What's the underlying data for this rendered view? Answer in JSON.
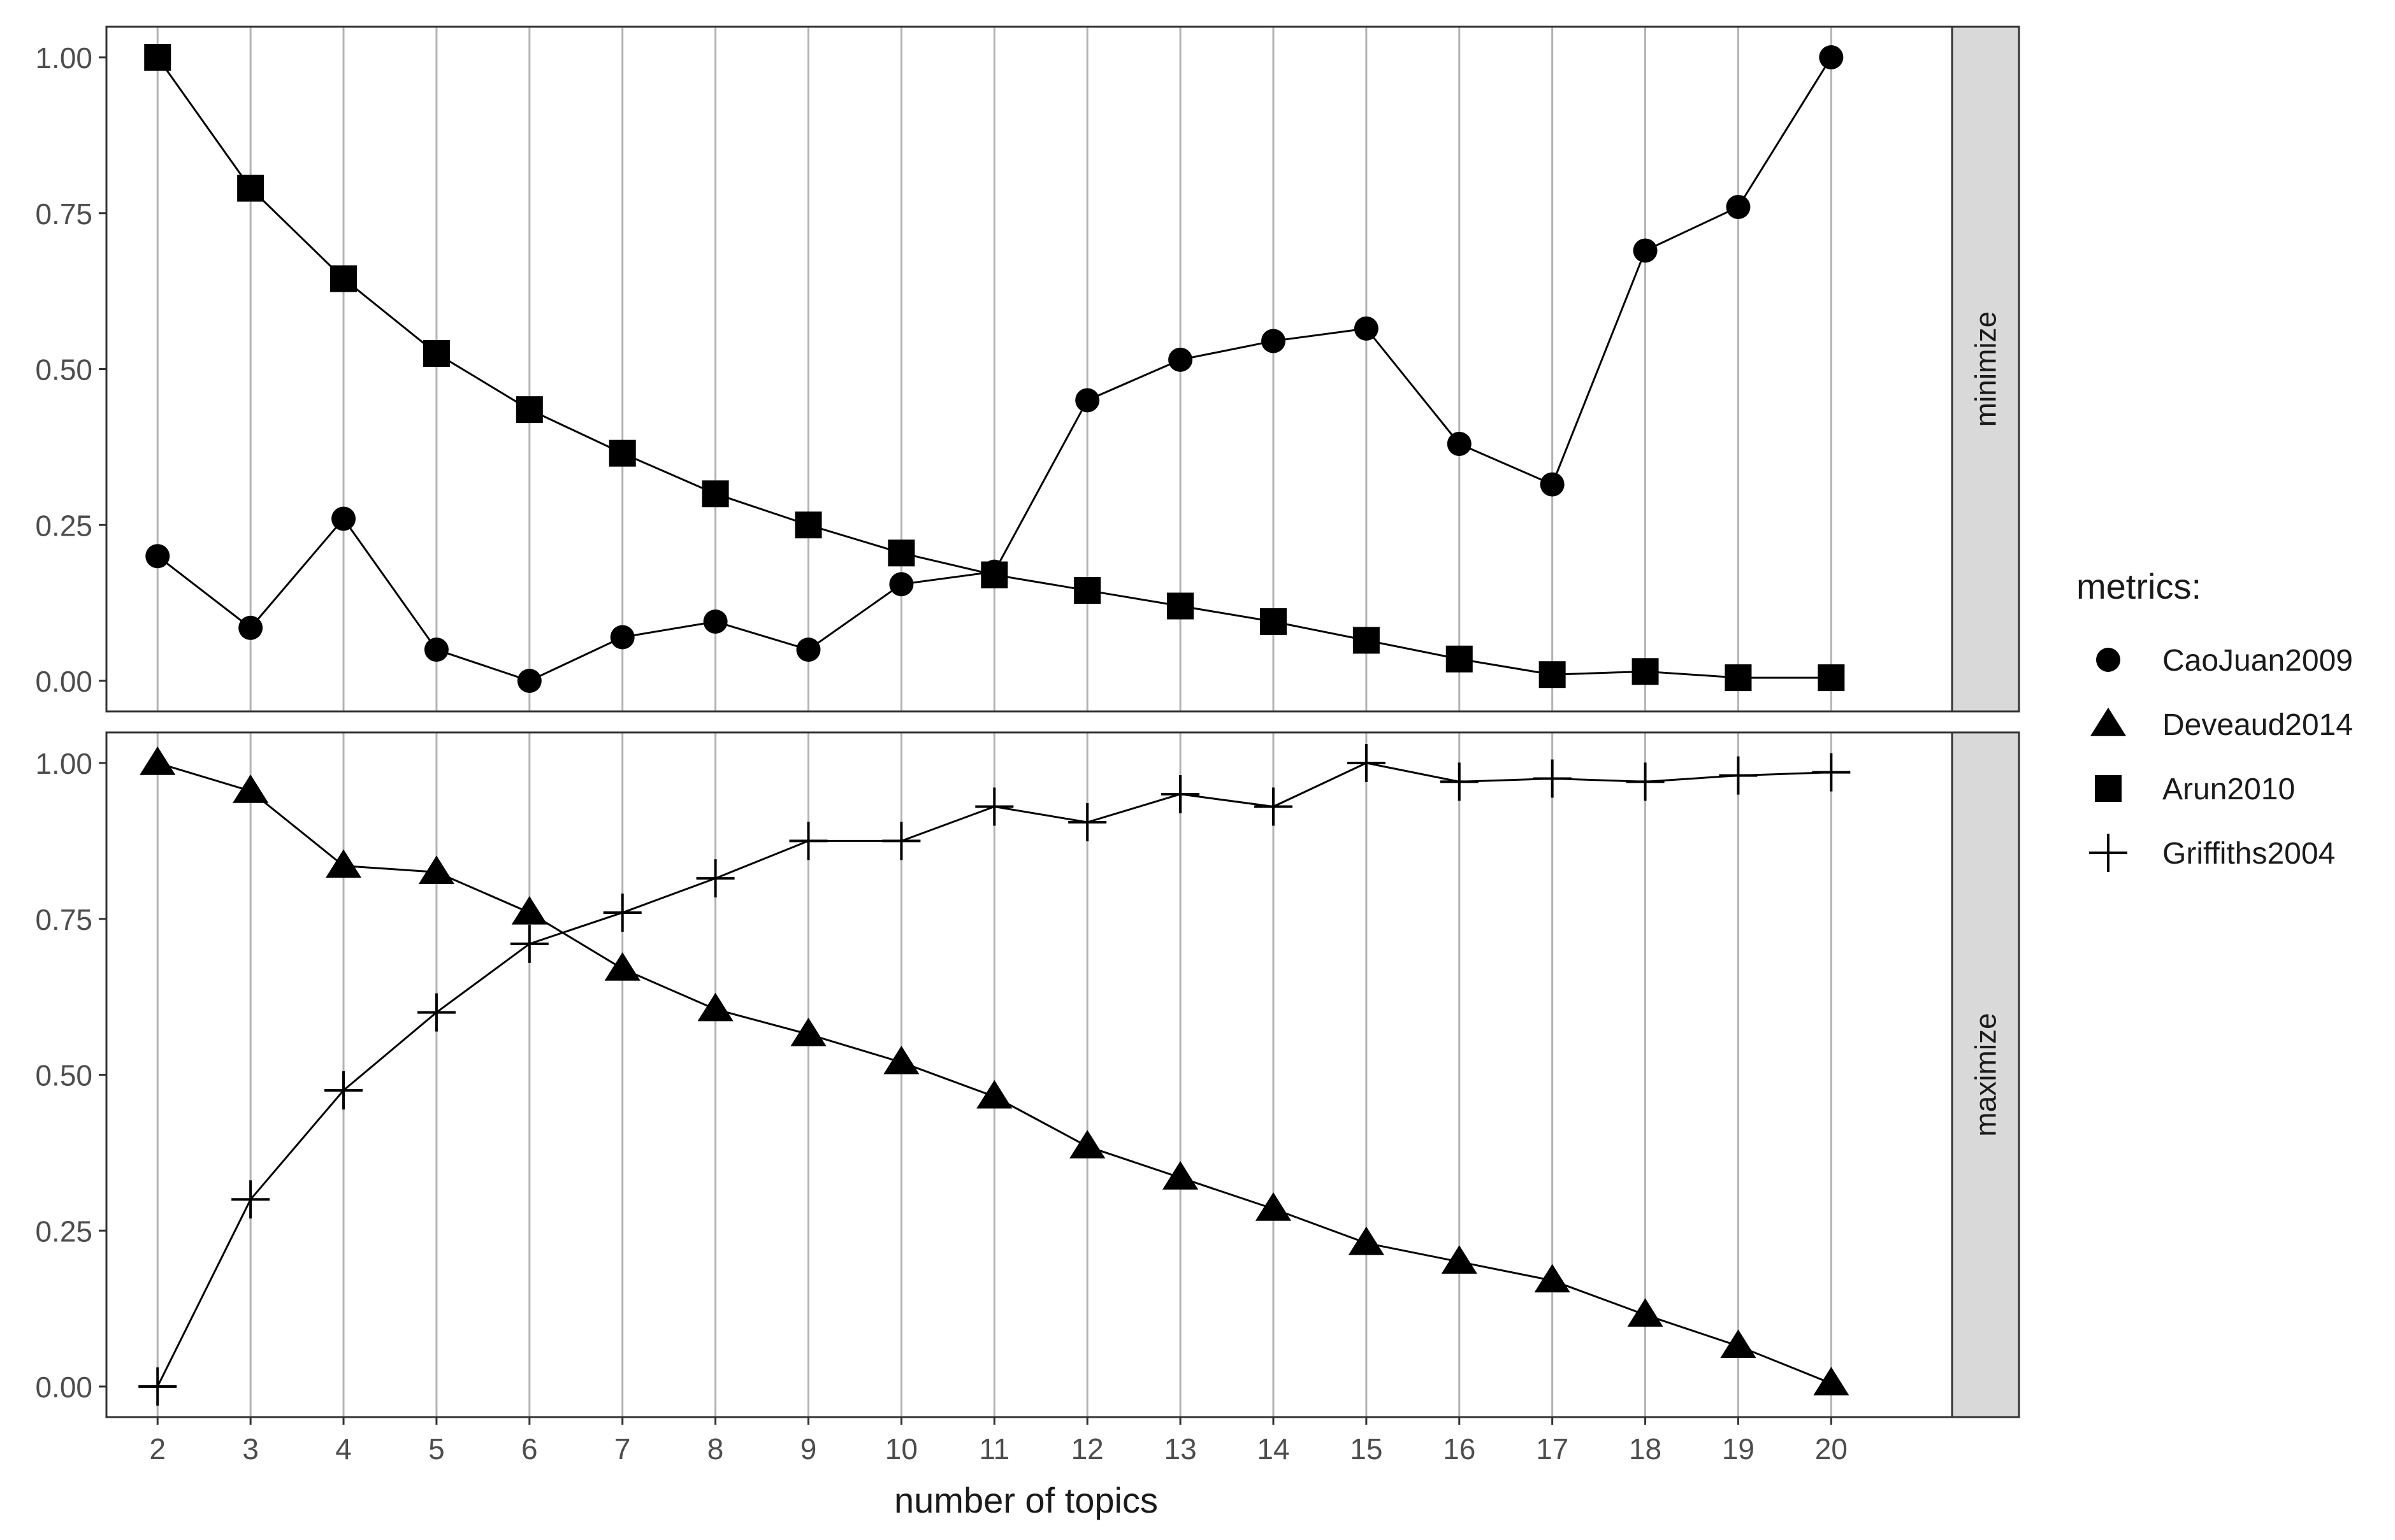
{
  "chart_data": {
    "type": "line",
    "x": [
      2,
      3,
      4,
      5,
      6,
      7,
      8,
      9,
      10,
      11,
      12,
      13,
      14,
      15,
      16,
      17,
      18,
      19,
      20
    ],
    "xlabel": "number of topics",
    "ylim": [
      0,
      1
    ],
    "yticks": [
      "0.00",
      "0.25",
      "0.50",
      "0.75",
      "1.00"
    ],
    "xticks": [
      "2",
      "3",
      "4",
      "5",
      "6",
      "7",
      "8",
      "9",
      "10",
      "11",
      "12",
      "13",
      "14",
      "15",
      "16",
      "17",
      "18",
      "19",
      "20"
    ],
    "grid": "vertical",
    "legend": {
      "title": "metrics:",
      "position": "right",
      "entries": [
        {
          "label": "CaoJuan2009",
          "shape": "circle"
        },
        {
          "label": "Deveaud2014",
          "shape": "triangle"
        },
        {
          "label": "Arun2010",
          "shape": "square"
        },
        {
          "label": "Griffiths2004",
          "shape": "plus"
        }
      ]
    },
    "panels": [
      {
        "strip": "minimize",
        "series": [
          {
            "name": "CaoJuan2009",
            "shape": "circle",
            "values": [
              0.2,
              0.085,
              0.26,
              0.05,
              0.0,
              0.07,
              0.095,
              0.05,
              0.155,
              0.175,
              0.45,
              0.515,
              0.545,
              0.565,
              0.38,
              0.315,
              0.69,
              0.76,
              1.0
            ]
          },
          {
            "name": "Arun2010",
            "shape": "square",
            "values": [
              1.0,
              0.79,
              0.645,
              0.525,
              0.435,
              0.365,
              0.3,
              0.25,
              0.205,
              0.17,
              0.145,
              0.12,
              0.095,
              0.065,
              0.035,
              0.01,
              0.015,
              0.005,
              0.005
            ]
          }
        ]
      },
      {
        "strip": "maximize",
        "series": [
          {
            "name": "Deveaud2014",
            "shape": "triangle",
            "values": [
              1.0,
              0.955,
              0.835,
              0.825,
              0.76,
              0.67,
              0.605,
              0.565,
              0.52,
              0.465,
              0.385,
              0.335,
              0.285,
              0.23,
              0.2,
              0.17,
              0.115,
              0.065,
              0.005
            ]
          },
          {
            "name": "Griffiths2004",
            "shape": "plus",
            "values": [
              0.0,
              0.3,
              0.475,
              0.6,
              0.71,
              0.76,
              0.815,
              0.875,
              0.875,
              0.93,
              0.905,
              0.95,
              0.93,
              1.0,
              0.97,
              0.975,
              0.97,
              0.98,
              0.985
            ]
          }
        ]
      }
    ]
  }
}
